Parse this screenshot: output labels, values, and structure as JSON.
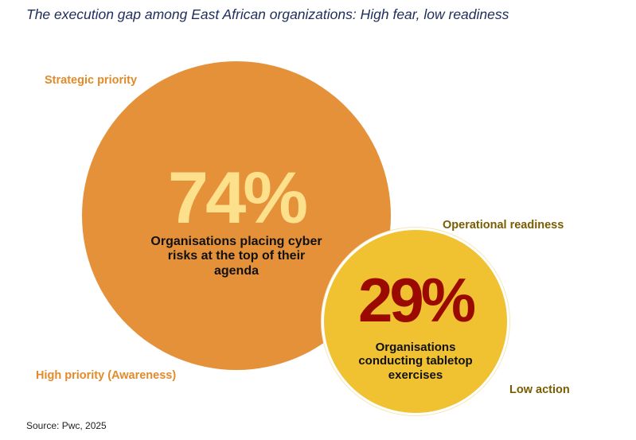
{
  "title": "The execution gap among East African organizations: High fear, low readiness",
  "labels": {
    "strategic_priority": "Strategic priority",
    "high_priority": "High priority (Awareness)",
    "operational_readiness": "Operational readiness",
    "low_action": "Low action"
  },
  "bubbles": [
    {
      "value": "74%",
      "description": "Organisations placing cyber risks at the top of their agenda",
      "color": "#e5913a",
      "value_color": "#fde08c"
    },
    {
      "value": "29%",
      "description": "Organisations conducting tabletop exercises",
      "color": "#f0c232",
      "value_color": "#9b0a00"
    }
  ],
  "source": "Source: Pwc, 2025"
}
